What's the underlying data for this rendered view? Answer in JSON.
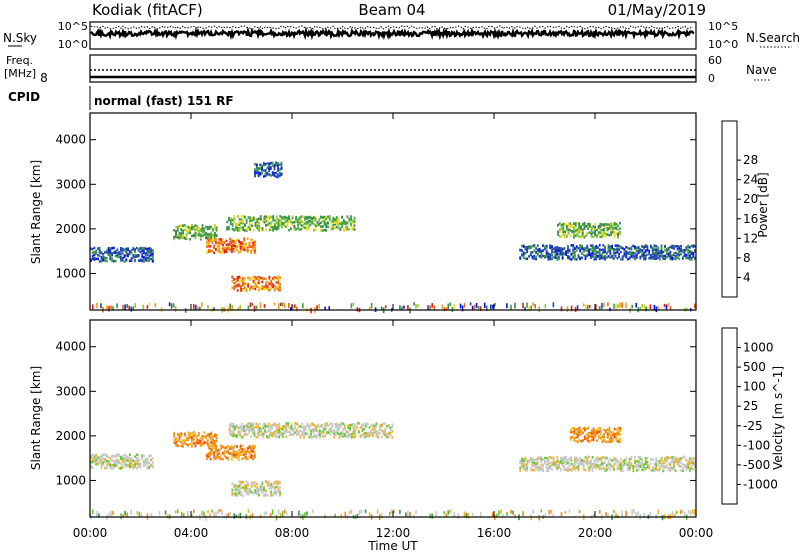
{
  "header": {
    "station": "Kodiak (fitACF)",
    "beam": "Beam 04",
    "date": "01/May/2019"
  },
  "status_panel": {
    "nsky_label": "N.Sky",
    "nsearch_label": "N.Search",
    "nsky_ticks": [
      "10^5",
      "10^0"
    ],
    "nsearch_ticks": [
      "10^5",
      "10^0"
    ],
    "freq_label": "Freq.",
    "freq_unit": "[MHz]",
    "freq_ticks": [
      "8"
    ],
    "nave_label": "Nave",
    "nave_ticks": [
      "60",
      "0"
    ],
    "cpid_label": "CPID",
    "cpid_text": "normal (fast) 151 RF"
  },
  "chart_data": [
    {
      "type": "heatmap",
      "title": "",
      "xlabel": "",
      "ylabel": "Slant Range [km]",
      "x_ticks": [
        "00:00",
        "04:00",
        "08:00",
        "12:00",
        "16:00",
        "20:00",
        "00:00"
      ],
      "xlim": [
        "00:00",
        "24:00"
      ],
      "ylim": [
        180,
        4600
      ],
      "y_ticks": [
        1000,
        2000,
        3000,
        4000
      ],
      "colorbar": {
        "label": "Power [dB]",
        "ticks": [
          4,
          8,
          12,
          16,
          20,
          24,
          28
        ],
        "colors": [
          "#0a14e6",
          "#1e46b4",
          "#3c8250",
          "#3ca046",
          "#8cc83c",
          "#f0dc1e",
          "#f0a01e",
          "#f06414",
          "#e61e14"
        ]
      },
      "features": [
        {
          "t_start": 0.0,
          "t_end": 2.5,
          "range_km": 1450,
          "level": "low"
        },
        {
          "t_start": 3.3,
          "t_end": 5.0,
          "range_km": 1950,
          "level": "medium"
        },
        {
          "t_start": 4.6,
          "t_end": 6.5,
          "range_km": 1650,
          "level": "high"
        },
        {
          "t_start": 5.4,
          "t_end": 10.5,
          "range_km": 2150,
          "level": "medium"
        },
        {
          "t_start": 5.6,
          "t_end": 7.5,
          "range_km": 800,
          "level": "high"
        },
        {
          "t_start": 6.5,
          "t_end": 7.6,
          "range_km": 3350,
          "level": "low"
        },
        {
          "t_start": 17.0,
          "t_end": 24.0,
          "range_km": 1500,
          "level": "low"
        },
        {
          "t_start": 18.5,
          "t_end": 21.0,
          "range_km": 2000,
          "level": "medium"
        }
      ]
    },
    {
      "type": "heatmap",
      "title": "",
      "xlabel": "Time UT",
      "ylabel": "Slant Range [km]",
      "x_ticks": [
        "00:00",
        "04:00",
        "08:00",
        "12:00",
        "16:00",
        "20:00",
        "00:00"
      ],
      "xlim": [
        "00:00",
        "24:00"
      ],
      "ylim": [
        180,
        4600
      ],
      "y_ticks": [
        1000,
        2000,
        3000,
        4000
      ],
      "colorbar": {
        "label": "Velocity [m s^-1]",
        "ticks": [
          "1000",
          "500",
          "100",
          "25",
          "-25",
          "-100",
          "-500",
          "-1000"
        ],
        "colors": [
          "#1e28c8",
          "#286eb4",
          "#3c9650",
          "#64c832",
          "#c8c8c8",
          "#f0b428",
          "#f08c14",
          "#f05014",
          "#e61e14"
        ]
      },
      "features": [
        {
          "t_start": 0.0,
          "t_end": 2.5,
          "range_km": 1450,
          "level": "near-zero"
        },
        {
          "t_start": 3.3,
          "t_end": 5.0,
          "range_km": 1950,
          "level": "negative"
        },
        {
          "t_start": 4.6,
          "t_end": 6.5,
          "range_km": 1650,
          "level": "negative"
        },
        {
          "t_start": 5.5,
          "t_end": 12.0,
          "range_km": 2150,
          "level": "near-zero"
        },
        {
          "t_start": 5.6,
          "t_end": 7.5,
          "range_km": 850,
          "level": "near-zero"
        },
        {
          "t_start": 19.0,
          "t_end": 21.0,
          "range_km": 2050,
          "level": "negative"
        },
        {
          "t_start": 17.0,
          "t_end": 24.0,
          "range_km": 1400,
          "level": "near-zero"
        }
      ]
    }
  ]
}
